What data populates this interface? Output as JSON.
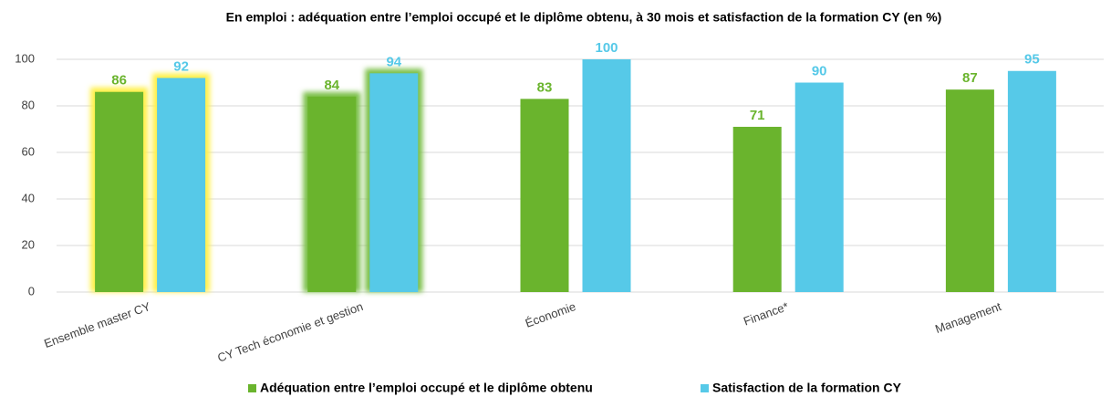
{
  "chart_data": {
    "type": "bar",
    "title": "En emploi : adéquation entre l’emploi occupé et le diplôme obtenu, à 30 mois  et satisfaction de la formation CY (en %)",
    "categories": [
      "Ensemble master CY",
      "CY Tech économie et gestion",
      "Économie",
      "Finance*",
      "Management"
    ],
    "series": [
      {
        "name": "Adéquation entre l’emploi occupé et le diplôme obtenu",
        "color": "#6ab42d",
        "values": [
          86,
          84,
          83,
          71,
          87
        ]
      },
      {
        "name": "Satisfaction de la formation CY",
        "color": "#56c9e8",
        "values": [
          92,
          94,
          100,
          90,
          95
        ]
      }
    ],
    "glow": [
      "#fff04a",
      "#7cc04a",
      null,
      null,
      null
    ],
    "ylim": [
      0,
      100
    ],
    "yticks": [
      0,
      20,
      40,
      60,
      80,
      100
    ],
    "grid": true,
    "legend": "bottom"
  }
}
